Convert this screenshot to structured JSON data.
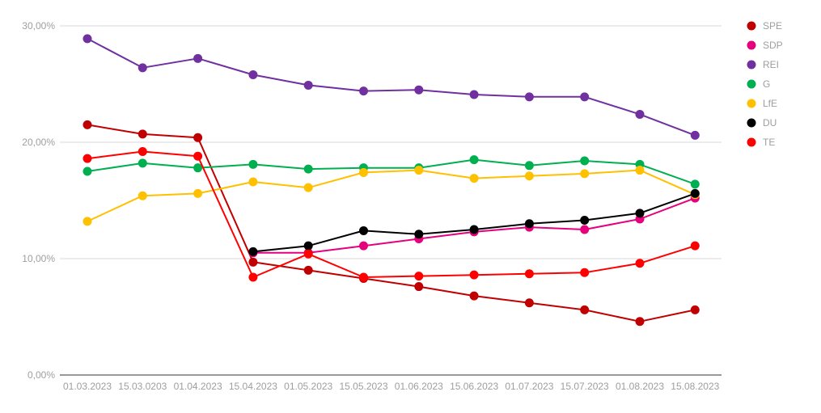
{
  "chart_data": {
    "type": "line",
    "categories": [
      "01.03.2023",
      "15.03.0203",
      "01.04.2023",
      "15.04.2023",
      "01.05.2023",
      "15.05.2023",
      "01.06.2023",
      "15.06.2023",
      "01.07.2023",
      "15.07.2023",
      "01.08.2023",
      "15.08.2023"
    ],
    "ylim": [
      0,
      30
    ],
    "yticks": [
      {
        "value": 0,
        "label": "0,00%"
      },
      {
        "value": 10,
        "label": "10,00%"
      },
      {
        "value": 20,
        "label": "20,00%"
      },
      {
        "value": 30,
        "label": "30,00%"
      }
    ],
    "grid": true,
    "legend_position": "right",
    "series": [
      {
        "name": "SPE",
        "color": "#c00000",
        "values": [
          21.5,
          20.7,
          20.4,
          9.7,
          9.0,
          8.3,
          7.6,
          6.8,
          6.2,
          5.6,
          4.6,
          5.6
        ]
      },
      {
        "name": "SDP",
        "color": "#e6007e",
        "values": [
          null,
          null,
          null,
          10.5,
          10.5,
          11.1,
          11.7,
          12.3,
          12.7,
          12.5,
          13.4,
          15.2
        ]
      },
      {
        "name": "REI",
        "color": "#7030a0",
        "values": [
          28.9,
          26.4,
          27.2,
          25.8,
          24.9,
          24.4,
          24.5,
          24.1,
          23.9,
          23.9,
          22.4,
          20.6
        ]
      },
      {
        "name": "G",
        "color": "#00b050",
        "values": [
          17.5,
          18.2,
          17.8,
          18.1,
          17.7,
          17.8,
          17.8,
          18.5,
          18.0,
          18.4,
          18.1,
          16.4
        ]
      },
      {
        "name": "LfE",
        "color": "#ffc000",
        "values": [
          13.2,
          15.4,
          15.6,
          16.6,
          16.1,
          17.4,
          17.6,
          16.9,
          17.1,
          17.3,
          17.6,
          15.5
        ]
      },
      {
        "name": "DU",
        "color": "#000000",
        "values": [
          null,
          null,
          null,
          10.6,
          11.1,
          12.4,
          12.1,
          12.5,
          13.0,
          13.3,
          13.9,
          15.6
        ]
      },
      {
        "name": "TE",
        "color": "#ff0000",
        "values": [
          18.6,
          19.2,
          18.8,
          8.4,
          10.4,
          8.4,
          8.5,
          8.6,
          8.7,
          8.8,
          9.6,
          11.1
        ]
      }
    ]
  }
}
